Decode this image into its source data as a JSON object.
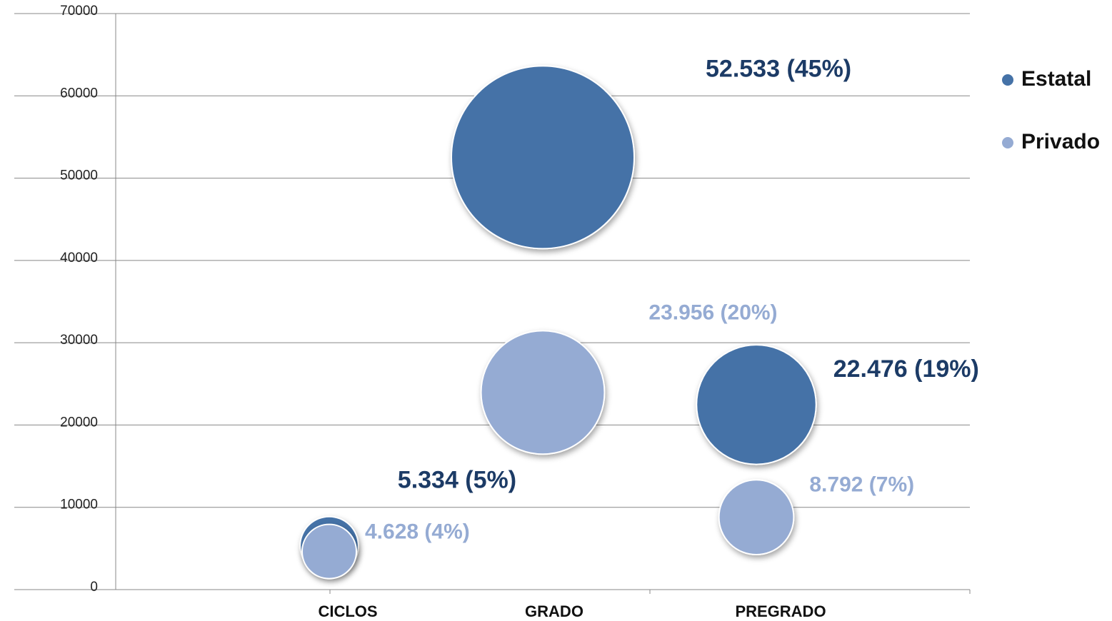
{
  "chart_data": {
    "type": "bubble",
    "categories": [
      "CICLOS",
      "GRADO",
      "PREGRADO"
    ],
    "x": [
      1,
      2,
      3
    ],
    "xlim": [
      0,
      4
    ],
    "ylim": [
      0,
      70000
    ],
    "yticks": [
      0,
      10000,
      20000,
      30000,
      40000,
      50000,
      60000,
      70000
    ],
    "grid": true,
    "legend": "right",
    "series": [
      {
        "name": "Estatal",
        "color": "#4572a7",
        "label_color": "#1c3b66",
        "values": [
          5334,
          52533,
          22476
        ],
        "sizes": [
          5334,
          52533,
          22476
        ],
        "value_labels": [
          "5.334 (5%)",
          "52.533 (45%)",
          "22.476 (19%)"
        ]
      },
      {
        "name": "Privado",
        "color": "#95abd3",
        "label_color": "#95abd3",
        "values": [
          4628,
          23956,
          8792
        ],
        "sizes": [
          4628,
          23956,
          8792
        ],
        "value_labels": [
          "4.628 (4%)",
          "23.956 (20%)",
          "8.792 (7%)"
        ]
      }
    ]
  }
}
